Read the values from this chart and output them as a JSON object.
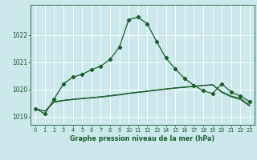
{
  "bg_color": "#cce8ed",
  "grid_color": "#ffffff",
  "line_color": "#1a5c2a",
  "title": "Graphe pression niveau de la mer (hPa)",
  "xlim": [
    -0.5,
    23.5
  ],
  "ylim": [
    1018.7,
    1023.1
  ],
  "yticks": [
    1019,
    1020,
    1021,
    1022
  ],
  "xticks": [
    0,
    1,
    2,
    3,
    4,
    5,
    6,
    7,
    8,
    9,
    10,
    11,
    12,
    13,
    14,
    15,
    16,
    17,
    18,
    19,
    20,
    21,
    22,
    23
  ],
  "series1": {
    "x": [
      0,
      1,
      2,
      3,
      4,
      5,
      6,
      7,
      8,
      9,
      10,
      11,
      12,
      13,
      14,
      15,
      16,
      17,
      18,
      19,
      20,
      21,
      22,
      23
    ],
    "y": [
      1019.3,
      1019.1,
      1019.65,
      1020.2,
      1020.45,
      1020.55,
      1020.72,
      1020.85,
      1021.1,
      1021.55,
      1022.55,
      1022.65,
      1022.4,
      1021.75,
      1021.15,
      1020.75,
      1020.4,
      1020.15,
      1019.95,
      1019.85,
      1020.2,
      1019.9,
      1019.75,
      1019.55
    ]
  },
  "series2": {
    "x": [
      0,
      1,
      2,
      3,
      4,
      5,
      6,
      7,
      8,
      9,
      10,
      11,
      12,
      13,
      14,
      15,
      16,
      17,
      18,
      19,
      20,
      21,
      22,
      23
    ],
    "y": [
      1019.3,
      1019.2,
      1019.52,
      1019.58,
      1019.62,
      1019.65,
      1019.68,
      1019.71,
      1019.75,
      1019.79,
      1019.84,
      1019.88,
      1019.92,
      1019.96,
      1020.0,
      1020.04,
      1020.07,
      1020.1,
      1020.13,
      1020.16,
      1019.88,
      1019.72,
      1019.62,
      1019.38
    ]
  },
  "series3": {
    "x": [
      0,
      1,
      2,
      3,
      4,
      5,
      6,
      7,
      8,
      9,
      10,
      11,
      12,
      13,
      14,
      15,
      16,
      17,
      18,
      19,
      20,
      21,
      22,
      23
    ],
    "y": [
      1019.3,
      1019.2,
      1019.55,
      1019.6,
      1019.64,
      1019.67,
      1019.7,
      1019.73,
      1019.77,
      1019.81,
      1019.86,
      1019.9,
      1019.94,
      1019.98,
      1020.02,
      1020.05,
      1020.08,
      1020.11,
      1020.14,
      1020.17,
      1019.9,
      1019.74,
      1019.64,
      1019.4
    ]
  },
  "series4": {
    "x": [
      0,
      1,
      2,
      3,
      4,
      5,
      6,
      7,
      8,
      9,
      10,
      11,
      12,
      13,
      14,
      15,
      16,
      17,
      18,
      19,
      20,
      21,
      22,
      23
    ],
    "y": [
      1019.3,
      1019.2,
      1019.55,
      1019.6,
      1019.64,
      1019.67,
      1019.7,
      1019.73,
      1019.77,
      1019.81,
      1019.86,
      1019.9,
      1019.94,
      1019.98,
      1020.02,
      1020.06,
      1020.09,
      1020.12,
      1020.15,
      1020.18,
      1019.92,
      1019.76,
      1019.67,
      1019.43
    ]
  }
}
